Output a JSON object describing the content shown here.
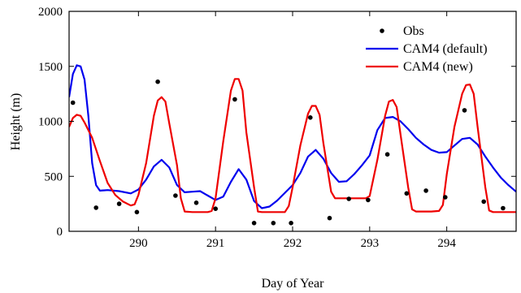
{
  "chart_data": {
    "type": "line",
    "title": "",
    "xlabel": "Day of Year",
    "ylabel": "Height (m)",
    "xlim": [
      289.1,
      294.9
    ],
    "ylim": [
      0,
      2000
    ],
    "xticks": [
      290,
      291,
      292,
      293,
      294
    ],
    "yticks": [
      0,
      500,
      1000,
      1500,
      2000
    ],
    "grid": false,
    "legend_position": "top-right",
    "series": [
      {
        "name": "Obs",
        "kind": "scatter",
        "color": "#000000",
        "points": [
          [
            289.15,
            1170
          ],
          [
            289.45,
            215
          ],
          [
            289.75,
            250
          ],
          [
            289.98,
            175
          ],
          [
            290.25,
            1360
          ],
          [
            290.48,
            325
          ],
          [
            290.75,
            260
          ],
          [
            291.0,
            205
          ],
          [
            291.25,
            1200
          ],
          [
            291.5,
            75
          ],
          [
            291.75,
            75
          ],
          [
            291.98,
            75
          ],
          [
            292.23,
            1035
          ],
          [
            292.48,
            120
          ],
          [
            292.73,
            295
          ],
          [
            292.98,
            285
          ],
          [
            293.23,
            700
          ],
          [
            293.48,
            345
          ],
          [
            293.73,
            370
          ],
          [
            293.98,
            310
          ],
          [
            294.23,
            1100
          ],
          [
            294.48,
            270
          ],
          [
            294.73,
            210
          ]
        ]
      },
      {
        "name": "CAM4 (default)",
        "kind": "line",
        "color": "#0000ee",
        "points": [
          [
            289.1,
            1220
          ],
          [
            289.15,
            1430
          ],
          [
            289.2,
            1510
          ],
          [
            289.25,
            1500
          ],
          [
            289.3,
            1380
          ],
          [
            289.35,
            1050
          ],
          [
            289.4,
            620
          ],
          [
            289.45,
            420
          ],
          [
            289.5,
            370
          ],
          [
            289.6,
            375
          ],
          [
            289.75,
            365
          ],
          [
            289.9,
            345
          ],
          [
            290.0,
            380
          ],
          [
            290.1,
            470
          ],
          [
            290.2,
            590
          ],
          [
            290.3,
            650
          ],
          [
            290.4,
            580
          ],
          [
            290.5,
            420
          ],
          [
            290.6,
            355
          ],
          [
            290.7,
            360
          ],
          [
            290.8,
            365
          ],
          [
            290.9,
            325
          ],
          [
            291.0,
            285
          ],
          [
            291.1,
            315
          ],
          [
            291.2,
            450
          ],
          [
            291.3,
            565
          ],
          [
            291.4,
            470
          ],
          [
            291.5,
            275
          ],
          [
            291.6,
            210
          ],
          [
            291.7,
            225
          ],
          [
            291.8,
            280
          ],
          [
            291.9,
            350
          ],
          [
            292.0,
            420
          ],
          [
            292.1,
            530
          ],
          [
            292.2,
            680
          ],
          [
            292.3,
            740
          ],
          [
            292.4,
            660
          ],
          [
            292.5,
            530
          ],
          [
            292.6,
            450
          ],
          [
            292.7,
            455
          ],
          [
            292.8,
            520
          ],
          [
            292.9,
            600
          ],
          [
            293.0,
            690
          ],
          [
            293.1,
            920
          ],
          [
            293.2,
            1030
          ],
          [
            293.3,
            1040
          ],
          [
            293.4,
            1000
          ],
          [
            293.5,
            930
          ],
          [
            293.6,
            850
          ],
          [
            293.7,
            790
          ],
          [
            293.8,
            740
          ],
          [
            293.9,
            715
          ],
          [
            294.0,
            720
          ],
          [
            294.1,
            780
          ],
          [
            294.2,
            840
          ],
          [
            294.3,
            850
          ],
          [
            294.4,
            790
          ],
          [
            294.5,
            680
          ],
          [
            294.6,
            580
          ],
          [
            294.7,
            490
          ],
          [
            294.8,
            420
          ],
          [
            294.9,
            360
          ]
        ]
      },
      {
        "name": "CAM4 (new)",
        "kind": "line",
        "color": "#ee0000",
        "points": [
          [
            289.1,
            950
          ],
          [
            289.15,
            1030
          ],
          [
            289.2,
            1060
          ],
          [
            289.25,
            1050
          ],
          [
            289.3,
            990
          ],
          [
            289.4,
            850
          ],
          [
            289.5,
            640
          ],
          [
            289.6,
            440
          ],
          [
            289.7,
            330
          ],
          [
            289.8,
            270
          ],
          [
            289.9,
            235
          ],
          [
            289.95,
            245
          ],
          [
            290.0,
            330
          ],
          [
            290.1,
            620
          ],
          [
            290.2,
            1050
          ],
          [
            290.25,
            1190
          ],
          [
            290.3,
            1220
          ],
          [
            290.35,
            1180
          ],
          [
            290.4,
            980
          ],
          [
            290.5,
            600
          ],
          [
            290.55,
            300
          ],
          [
            290.6,
            180
          ],
          [
            290.7,
            175
          ],
          [
            290.8,
            175
          ],
          [
            290.9,
            175
          ],
          [
            290.95,
            185
          ],
          [
            291.0,
            300
          ],
          [
            291.1,
            820
          ],
          [
            291.2,
            1280
          ],
          [
            291.25,
            1385
          ],
          [
            291.3,
            1385
          ],
          [
            291.35,
            1280
          ],
          [
            291.4,
            900
          ],
          [
            291.5,
            400
          ],
          [
            291.55,
            180
          ],
          [
            291.6,
            175
          ],
          [
            291.7,
            175
          ],
          [
            291.8,
            175
          ],
          [
            291.9,
            175
          ],
          [
            291.95,
            230
          ],
          [
            292.0,
            400
          ],
          [
            292.1,
            780
          ],
          [
            292.2,
            1070
          ],
          [
            292.25,
            1140
          ],
          [
            292.3,
            1140
          ],
          [
            292.35,
            1060
          ],
          [
            292.4,
            800
          ],
          [
            292.5,
            360
          ],
          [
            292.55,
            300
          ],
          [
            292.7,
            300
          ],
          [
            292.85,
            300
          ],
          [
            292.95,
            300
          ],
          [
            293.0,
            320
          ],
          [
            293.1,
            650
          ],
          [
            293.2,
            1050
          ],
          [
            293.25,
            1180
          ],
          [
            293.3,
            1195
          ],
          [
            293.35,
            1130
          ],
          [
            293.4,
            880
          ],
          [
            293.5,
            400
          ],
          [
            293.55,
            200
          ],
          [
            293.6,
            180
          ],
          [
            293.7,
            180
          ],
          [
            293.8,
            180
          ],
          [
            293.9,
            185
          ],
          [
            293.95,
            240
          ],
          [
            294.0,
            520
          ],
          [
            294.1,
            950
          ],
          [
            294.2,
            1250
          ],
          [
            294.25,
            1330
          ],
          [
            294.3,
            1335
          ],
          [
            294.35,
            1250
          ],
          [
            294.4,
            950
          ],
          [
            294.5,
            400
          ],
          [
            294.55,
            190
          ],
          [
            294.6,
            175
          ],
          [
            294.7,
            175
          ],
          [
            294.8,
            175
          ],
          [
            294.9,
            175
          ]
        ]
      }
    ]
  }
}
